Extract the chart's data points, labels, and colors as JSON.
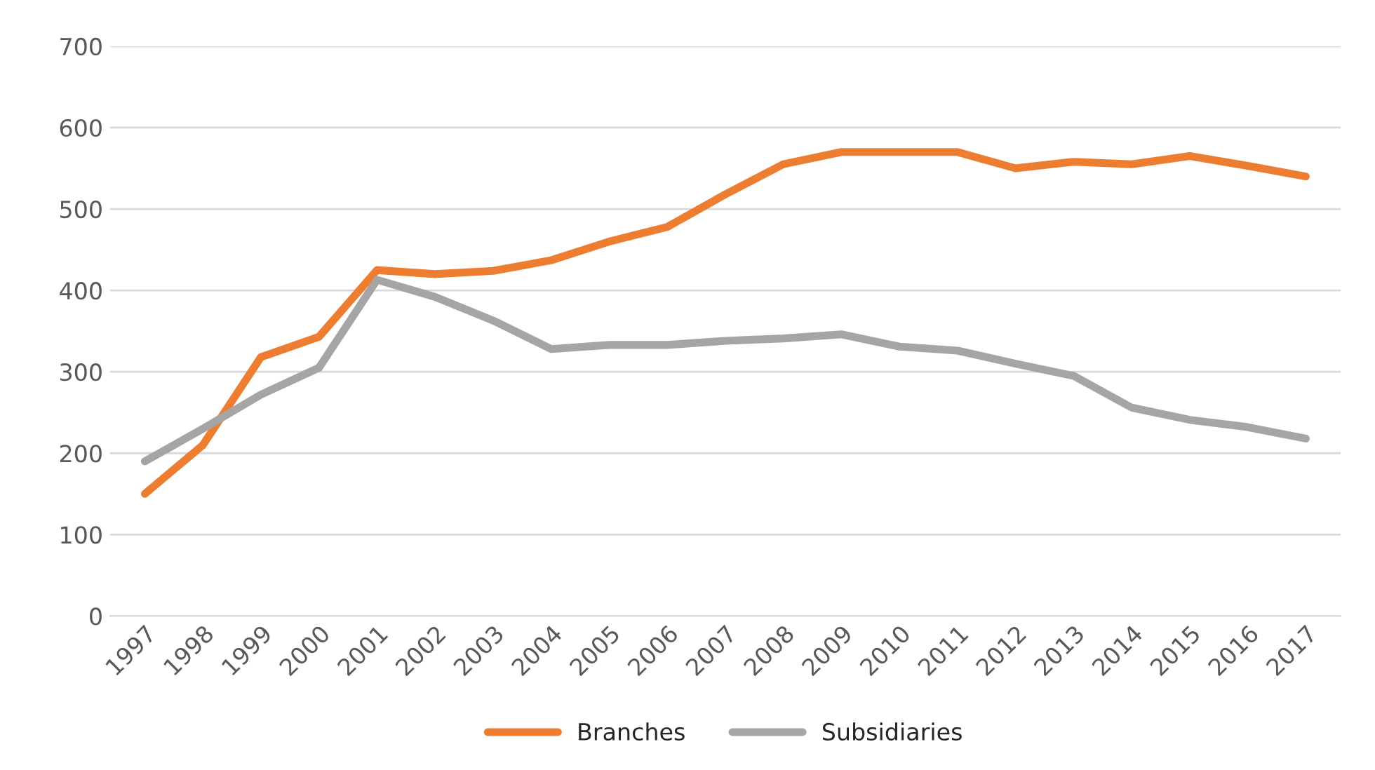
{
  "chart_data": {
    "type": "line",
    "categories": [
      "1997",
      "1998",
      "1999",
      "2000",
      "2001",
      "2002",
      "2003",
      "2004",
      "2005",
      "2006",
      "2007",
      "2008",
      "2009",
      "2010",
      "2011",
      "2012",
      "2013",
      "2014",
      "2015",
      "2016",
      "2017"
    ],
    "series": [
      {
        "name": "Branches",
        "color": "#ed7d31",
        "values": [
          150,
          210,
          318,
          343,
          425,
          420,
          424,
          437,
          460,
          478,
          518,
          555,
          570,
          570,
          570,
          550,
          558,
          555,
          565,
          553,
          540
        ]
      },
      {
        "name": "Subsidiaries",
        "color": "#a5a5a5",
        "values": [
          190,
          230,
          272,
          305,
          413,
          392,
          363,
          328,
          333,
          333,
          338,
          341,
          346,
          331,
          326,
          310,
          295,
          256,
          241,
          232,
          218
        ]
      }
    ],
    "ylim": [
      0,
      700
    ],
    "yticks": [
      0,
      100,
      200,
      300,
      400,
      500,
      600,
      700
    ],
    "grid": "y",
    "legend": "bottom",
    "marker": "none",
    "line_style": "solid"
  }
}
